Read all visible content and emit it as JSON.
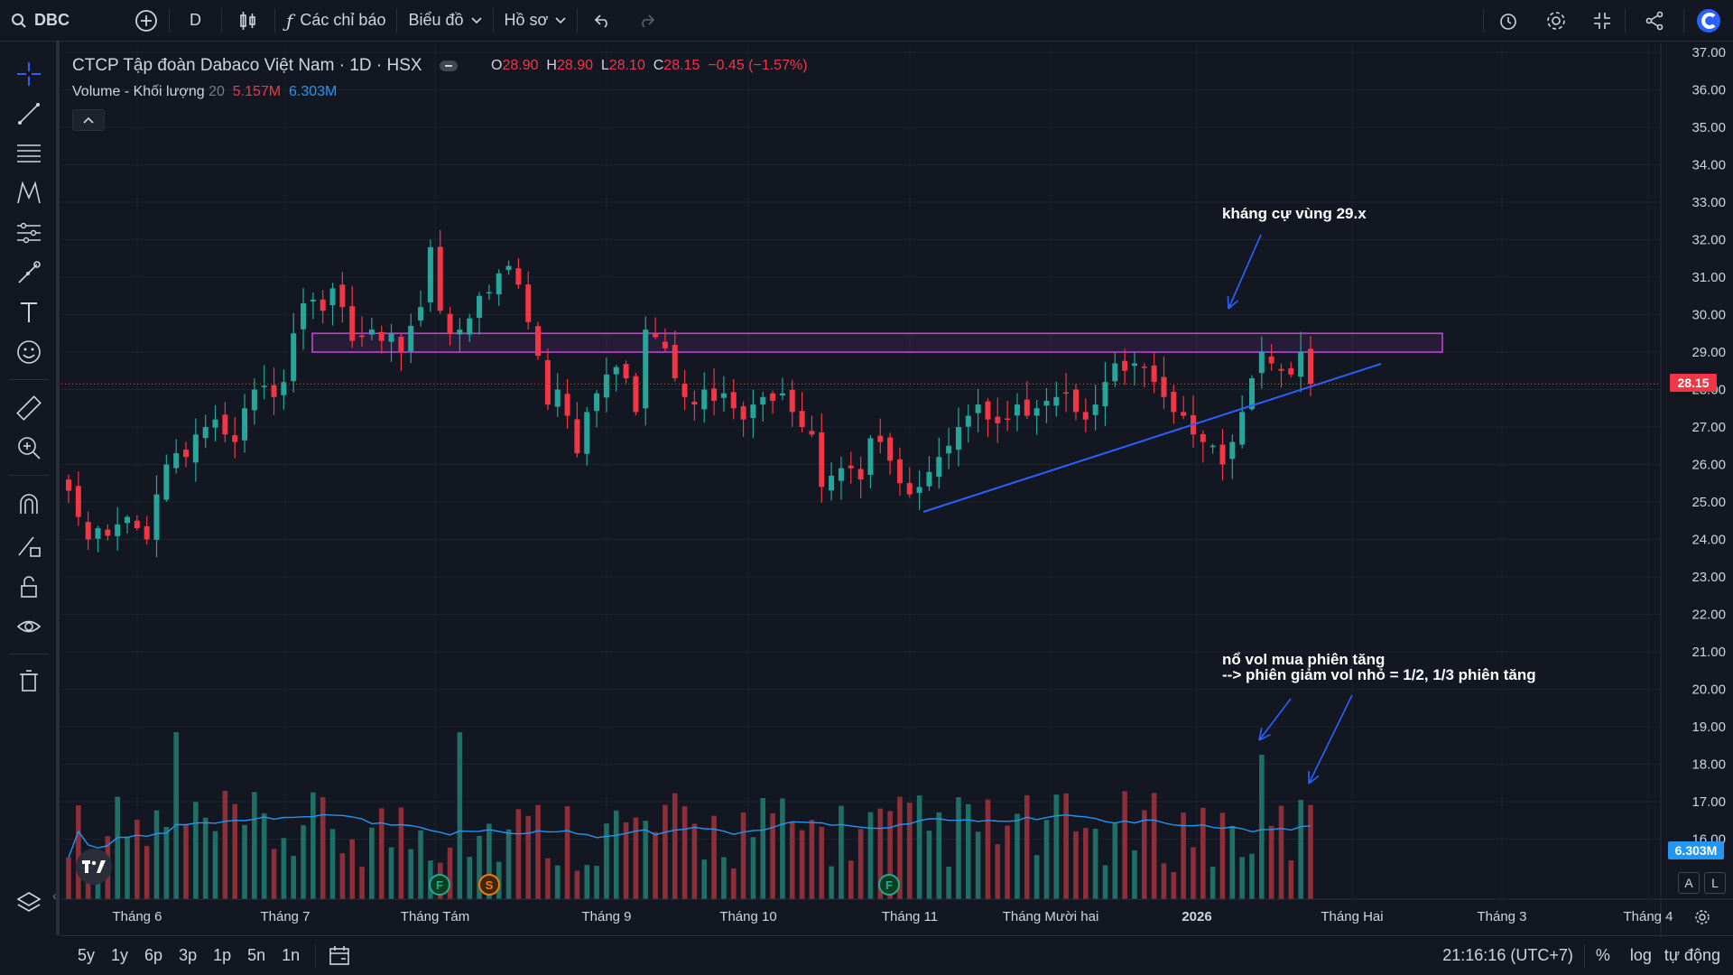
{
  "toolbar": {
    "symbol": "DBC",
    "interval": "D",
    "indicators_label": "Các chỉ báo",
    "chart_label": "Biểu đồ",
    "profile_label": "Hồ sơ"
  },
  "legend": {
    "title": "CTCP Tập đoàn Dabaco Việt Nam · 1D · HSX",
    "o_label": "O",
    "o": "28.90",
    "h_label": "H",
    "h": "28.90",
    "l_label": "L",
    "l": "28.10",
    "c_label": "C",
    "c": "28.15",
    "change": "−0.45 (−1.57%)",
    "volume_label": "Volume - Khối lượng",
    "volume_period": "20",
    "volume_value": "5.157M",
    "volume_ma": "6.303M"
  },
  "annotations": {
    "resistance": "kháng cự vùng 29.x",
    "volume_note_1": "nổ vol mua phiên tăng",
    "volume_note_2": "--> phiên giảm vol nhỏ = 1/2, 1/3 phiên tăng"
  },
  "price_tags": {
    "last_price": "28.15",
    "volume_ma": "6.303M"
  },
  "event_markers": [
    "F",
    "S",
    "F"
  ],
  "bottom": {
    "ranges": [
      "5y",
      "1y",
      "6p",
      "3p",
      "1p",
      "5n",
      "1n"
    ],
    "time": "21:16:16 (UTC+7)",
    "percent": "%",
    "log": "log",
    "auto": "tự động"
  },
  "scale_buttons": [
    "A",
    "L"
  ],
  "colors": {
    "up": "#26a69a",
    "down": "#f23645",
    "volume_up": "#1f6f66",
    "volume_down": "#8c2f39",
    "ma": "#2196f3",
    "zone": "#c042d4",
    "trendline": "#2962ff",
    "background": "#131722"
  },
  "chart_data": {
    "type": "candlestick",
    "y_axis_ticks": [
      "37.00",
      "36.00",
      "35.00",
      "34.00",
      "33.00",
      "32.00",
      "31.00",
      "30.00",
      "29.00",
      "28.00",
      "27.00",
      "26.00",
      "25.00",
      "24.00",
      "23.00",
      "22.00",
      "21.00",
      "20.00",
      "19.00",
      "18.00",
      "17.00",
      "16.00"
    ],
    "x_axis_labels": [
      "Tháng 6",
      "Tháng 7",
      "Tháng Tám",
      "Tháng 9",
      "Tháng 10",
      "Tháng 11",
      "Tháng Mười hai",
      "2026",
      "Tháng Hai",
      "Tháng 3",
      "Tháng 4"
    ],
    "resistance_zone": [
      29.0,
      29.5
    ],
    "close": [
      25.3,
      24.6,
      24.0,
      24.3,
      24.1,
      24.4,
      24.6,
      24.3,
      24.0,
      25.2,
      26.0,
      26.3,
      26.2,
      26.8,
      27.0,
      27.2,
      26.8,
      26.6,
      27.5,
      28.0,
      28.1,
      27.8,
      28.2,
      29.5,
      30.3,
      30.4,
      30.1,
      30.7,
      30.2,
      29.3,
      29.4,
      29.6,
      29.3,
      29.5,
      29.0,
      29.7,
      30.2,
      31.8,
      30.1,
      29.5,
      29.6,
      29.9,
      30.5,
      30.6,
      31.1,
      31.3,
      30.8,
      29.8,
      28.9,
      27.6,
      28.0,
      27.3,
      26.3,
      27.4,
      27.9,
      28.4,
      28.6,
      28.3,
      27.4,
      29.6,
      29.4,
      29.1,
      28.3,
      27.8,
      27.6,
      28.0,
      27.7,
      27.9,
      27.5,
      27.2,
      27.6,
      27.8,
      27.7,
      27.9,
      27.4,
      27.0,
      26.8,
      25.4,
      25.7,
      25.9,
      25.9,
      25.6,
      26.7,
      26.6,
      26.1,
      25.5,
      25.2,
      25.4,
      25.8,
      26.2,
      26.5,
      27.0,
      27.3,
      27.6,
      27.2,
      27.1,
      27.2,
      27.6,
      27.3,
      27.5,
      27.7,
      27.8,
      27.9,
      27.4,
      27.2,
      27.6,
      28.2,
      28.7,
      28.5,
      28.7,
      28.6,
      28.2,
      27.8,
      27.4,
      27.3,
      26.8,
      26.6,
      26.5,
      26.0,
      26.6,
      27.4,
      28.3,
      29.0,
      28.7,
      28.5,
      28.4,
      29.0,
      28.15
    ]
  }
}
